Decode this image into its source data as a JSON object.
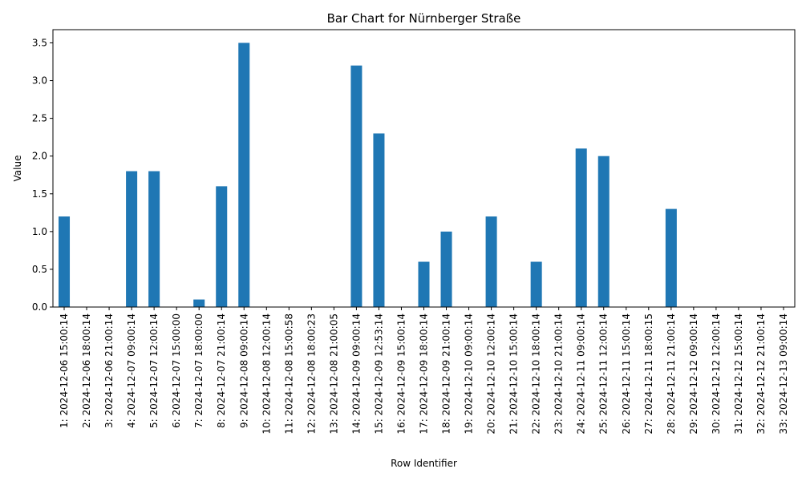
{
  "chart_data": {
    "type": "bar",
    "title": "Bar Chart for Nürnberger Straße",
    "xlabel": "Row Identifier",
    "ylabel": "Value",
    "ylim": [
      0,
      3.675
    ],
    "yticks": [
      "0.0",
      "0.5",
      "1.0",
      "1.5",
      "2.0",
      "2.5",
      "3.0",
      "3.5"
    ],
    "grid": false,
    "legend": "none",
    "bar_color": "#1f77b4",
    "categories": [
      "1: 2024-12-06 15:00:14",
      "2: 2024-12-06 18:00:14",
      "3: 2024-12-06 21:00:14",
      "4: 2024-12-07 09:00:14",
      "5: 2024-12-07 12:00:14",
      "6: 2024-12-07 15:00:00",
      "7: 2024-12-07 18:00:00",
      "8: 2024-12-07 21:00:14",
      "9: 2024-12-08 09:00:14",
      "10: 2024-12-08 12:00:14",
      "11: 2024-12-08 15:00:58",
      "12: 2024-12-08 18:00:23",
      "13: 2024-12-08 21:00:05",
      "14: 2024-12-09 09:00:14",
      "15: 2024-12-09 12:53:14",
      "16: 2024-12-09 15:00:14",
      "17: 2024-12-09 18:00:14",
      "18: 2024-12-09 21:00:14",
      "19: 2024-12-10 09:00:14",
      "20: 2024-12-10 12:00:14",
      "21: 2024-12-10 15:00:14",
      "22: 2024-12-10 18:00:14",
      "23: 2024-12-10 21:00:14",
      "24: 2024-12-11 09:00:14",
      "25: 2024-12-11 12:00:14",
      "26: 2024-12-11 15:00:14",
      "27: 2024-12-11 18:00:15",
      "28: 2024-12-11 21:00:14",
      "29: 2024-12-12 09:00:14",
      "30: 2024-12-12 12:00:14",
      "31: 2024-12-12 15:00:14",
      "32: 2024-12-12 21:00:14",
      "33: 2024-12-13 09:00:14"
    ],
    "values": [
      1.2,
      0,
      0,
      1.8,
      1.8,
      0,
      0.1,
      1.6,
      3.5,
      0,
      0,
      0,
      0,
      3.2,
      2.3,
      0,
      0.6,
      1.0,
      0,
      1.2,
      0,
      0.6,
      0,
      2.1,
      2.0,
      0,
      0,
      1.3,
      0,
      0,
      0,
      0,
      0
    ]
  }
}
